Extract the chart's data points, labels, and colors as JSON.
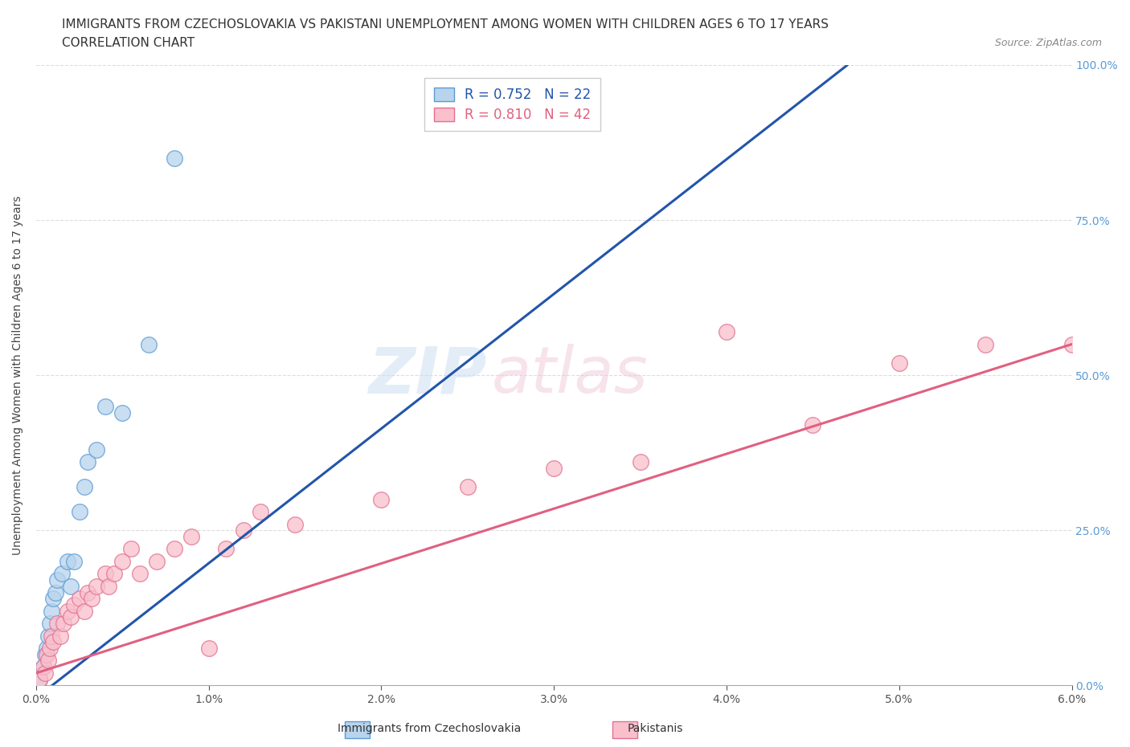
{
  "title_line1": "IMMIGRANTS FROM CZECHOSLOVAKIA VS PAKISTANI UNEMPLOYMENT AMONG WOMEN WITH CHILDREN AGES 6 TO 17 YEARS",
  "title_line2": "CORRELATION CHART",
  "source": "Source: ZipAtlas.com",
  "xlabel_ticks": [
    "0.0%",
    "1.0%",
    "2.0%",
    "3.0%",
    "4.0%",
    "5.0%",
    "6.0%"
  ],
  "xlabel_vals": [
    0.0,
    1.0,
    2.0,
    3.0,
    4.0,
    5.0,
    6.0
  ],
  "ylabel_ticks": [
    "0.0%",
    "25.0%",
    "50.0%",
    "75.0%",
    "100.0%"
  ],
  "ylabel_vals": [
    0.0,
    25.0,
    50.0,
    75.0,
    100.0
  ],
  "xlim": [
    0.0,
    6.0
  ],
  "ylim": [
    0.0,
    100.0
  ],
  "czech_color": "#b8d4ec",
  "czech_edge_color": "#5b9bd5",
  "pakistan_color": "#f9c0cc",
  "pakistan_edge_color": "#e07090",
  "trend_czech_color": "#2255aa",
  "trend_pakistan_color": "#e06080",
  "legend_R_czech": "R = 0.752   N = 22",
  "legend_R_pakistan": "R = 0.810   N = 42",
  "ylabel": "Unemployment Among Women with Children Ages 6 to 17 years",
  "watermark_zip": "ZIP",
  "watermark_atlas": "atlas",
  "background_color": "#ffffff",
  "grid_color": "#dddddd",
  "title_fontsize": 11,
  "subtitle_fontsize": 11,
  "axis_label_fontsize": 10,
  "tick_fontsize": 10,
  "czech_x": [
    0.02,
    0.04,
    0.05,
    0.06,
    0.07,
    0.08,
    0.09,
    0.1,
    0.11,
    0.12,
    0.15,
    0.18,
    0.2,
    0.22,
    0.25,
    0.28,
    0.3,
    0.35,
    0.4,
    0.5,
    0.65,
    0.8
  ],
  "czech_y": [
    1.0,
    3.0,
    5.0,
    6.0,
    8.0,
    10.0,
    12.0,
    14.0,
    15.0,
    17.0,
    18.0,
    20.0,
    16.0,
    20.0,
    28.0,
    32.0,
    36.0,
    38.0,
    45.0,
    44.0,
    55.0,
    85.0
  ],
  "pakistan_x": [
    0.02,
    0.04,
    0.05,
    0.06,
    0.07,
    0.08,
    0.09,
    0.1,
    0.12,
    0.14,
    0.16,
    0.18,
    0.2,
    0.22,
    0.25,
    0.28,
    0.3,
    0.32,
    0.35,
    0.4,
    0.42,
    0.45,
    0.5,
    0.55,
    0.6,
    0.7,
    0.8,
    0.9,
    1.0,
    1.1,
    1.2,
    1.3,
    1.5,
    2.0,
    2.5,
    3.0,
    3.5,
    4.0,
    4.5,
    5.0,
    5.5,
    6.0
  ],
  "pakistan_y": [
    1.0,
    3.0,
    2.0,
    5.0,
    4.0,
    6.0,
    8.0,
    7.0,
    10.0,
    8.0,
    10.0,
    12.0,
    11.0,
    13.0,
    14.0,
    12.0,
    15.0,
    14.0,
    16.0,
    18.0,
    16.0,
    18.0,
    20.0,
    22.0,
    18.0,
    20.0,
    22.0,
    24.0,
    6.0,
    22.0,
    25.0,
    28.0,
    26.0,
    30.0,
    32.0,
    35.0,
    36.0,
    57.0,
    42.0,
    52.0,
    55.0,
    55.0
  ],
  "czech_trend_x0": 0.0,
  "czech_trend_y0": -2.0,
  "czech_trend_x1": 4.7,
  "czech_trend_y1": 100.0,
  "pak_trend_x0": 0.0,
  "pak_trend_y0": 2.0,
  "pak_trend_x1": 6.0,
  "pak_trend_y1": 55.0
}
